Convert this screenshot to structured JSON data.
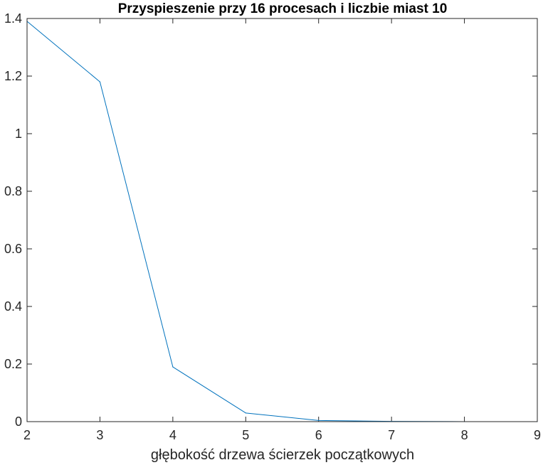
{
  "chart_data": {
    "type": "line",
    "title": "Przyspieszenie przy 16 procesach i liczbie miast 10",
    "xlabel": "głębokość drzewa ścierzek początkowych",
    "ylabel": "",
    "xlim": [
      2,
      9
    ],
    "ylim": [
      0,
      1.4
    ],
    "xticks": [
      "2",
      "3",
      "4",
      "5",
      "6",
      "7",
      "8",
      "9"
    ],
    "yticks": [
      "0",
      "0.2",
      "0.4",
      "0.6",
      "0.8",
      "1",
      "1.2",
      "1.4"
    ],
    "grid": false,
    "series": [
      {
        "color": "#0072bd",
        "x": [
          2,
          3,
          4,
          5,
          6,
          7,
          8,
          9
        ],
        "y": [
          1.39,
          1.18,
          0.19,
          0.03,
          0.004,
          0.001,
          0.0,
          0.0
        ]
      }
    ]
  }
}
